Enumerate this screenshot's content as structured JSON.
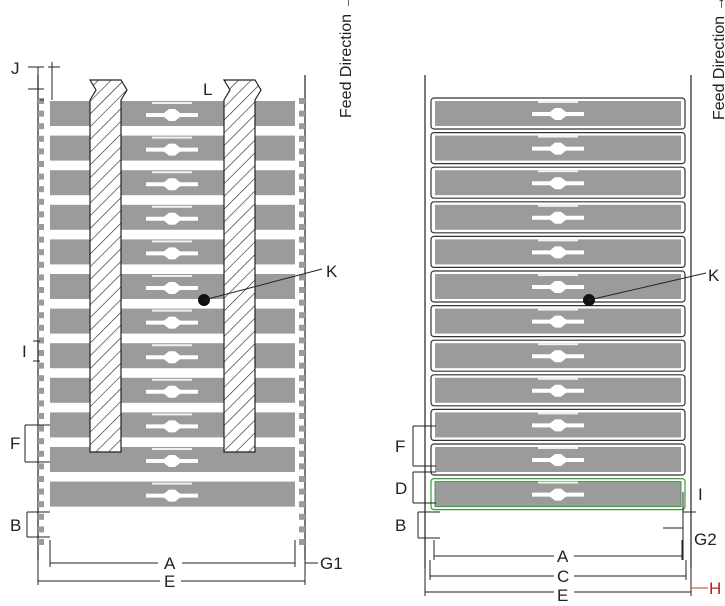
{
  "feed_direction": "Feed Direction →",
  "left_panel": {
    "labels": {
      "J": "J",
      "L": "L",
      "K": "K",
      "I": "I",
      "F": "F",
      "B": "B",
      "A": "A",
      "E": "E",
      "G1": "G1"
    },
    "label_count": 12
  },
  "right_panel": {
    "labels": {
      "K": "K",
      "F": "F",
      "D": "D",
      "B": "B",
      "I": "I",
      "G2": "G2",
      "A": "A",
      "C": "C",
      "H": "H",
      "E": "E"
    },
    "label_count": 12
  },
  "colors": {
    "label_fill": "#9b9b9b",
    "liner": "#333333",
    "highlight_green": "#3c9b3c",
    "highlight_red": "#c0392b"
  }
}
